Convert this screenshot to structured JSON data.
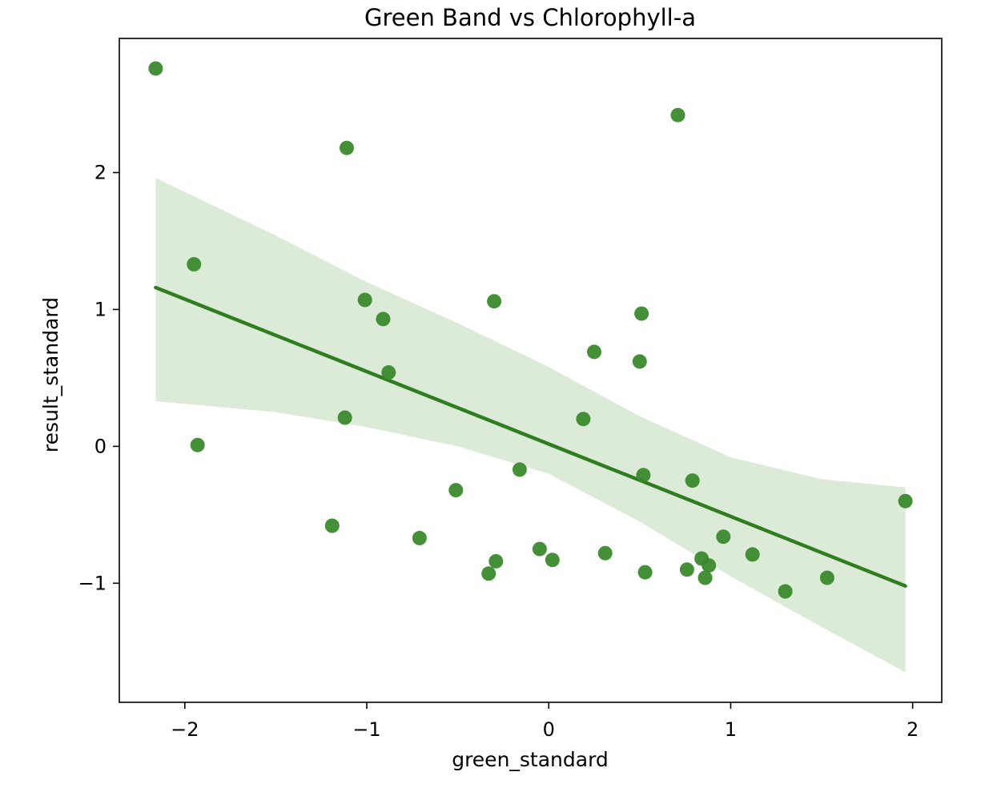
{
  "chart_data": {
    "type": "scatter",
    "title": "Green Band vs Chlorophyll-a",
    "xlabel": "green_standard",
    "ylabel": "result_standard",
    "xlim": [
      -2.36,
      2.16
    ],
    "ylim": [
      -1.87,
      2.98
    ],
    "x_ticks": [
      -2,
      -1,
      0,
      1,
      2
    ],
    "x_tick_labels": [
      "−2",
      "−1",
      "0",
      "1",
      "2"
    ],
    "y_ticks": [
      -1,
      0,
      1,
      2
    ],
    "y_tick_labels": [
      "−1",
      "0",
      "1",
      "2"
    ],
    "grid": false,
    "colors": {
      "points": "#3a8a2c",
      "line": "#2e7d1f",
      "ci_band": "#dcebd7"
    },
    "points": [
      {
        "x": -2.16,
        "y": 2.76
      },
      {
        "x": -1.11,
        "y": 2.18
      },
      {
        "x": 0.71,
        "y": 2.42
      },
      {
        "x": -1.95,
        "y": 1.33
      },
      {
        "x": -1.01,
        "y": 1.07
      },
      {
        "x": -0.91,
        "y": 0.93
      },
      {
        "x": -0.3,
        "y": 1.06
      },
      {
        "x": 0.51,
        "y": 0.97
      },
      {
        "x": 0.25,
        "y": 0.69
      },
      {
        "x": 0.5,
        "y": 0.62
      },
      {
        "x": -0.88,
        "y": 0.54
      },
      {
        "x": -1.12,
        "y": 0.21
      },
      {
        "x": 0.19,
        "y": 0.2
      },
      {
        "x": -1.93,
        "y": 0.01
      },
      {
        "x": -0.16,
        "y": -0.17
      },
      {
        "x": 0.52,
        "y": -0.21
      },
      {
        "x": 0.79,
        "y": -0.25
      },
      {
        "x": -0.51,
        "y": -0.32
      },
      {
        "x": 1.96,
        "y": -0.4
      },
      {
        "x": -1.19,
        "y": -0.58
      },
      {
        "x": -0.71,
        "y": -0.67
      },
      {
        "x": 0.96,
        "y": -0.66
      },
      {
        "x": -0.05,
        "y": -0.75
      },
      {
        "x": 0.31,
        "y": -0.78
      },
      {
        "x": 1.12,
        "y": -0.79
      },
      {
        "x": -0.29,
        "y": -0.84
      },
      {
        "x": 0.02,
        "y": -0.83
      },
      {
        "x": 0.84,
        "y": -0.82
      },
      {
        "x": 0.88,
        "y": -0.87
      },
      {
        "x": -0.33,
        "y": -0.93
      },
      {
        "x": 0.53,
        "y": -0.92
      },
      {
        "x": 0.76,
        "y": -0.9
      },
      {
        "x": 0.86,
        "y": -0.96
      },
      {
        "x": 1.53,
        "y": -0.96
      },
      {
        "x": 1.3,
        "y": -1.06
      }
    ],
    "regression": {
      "x": [
        -2.16,
        1.96
      ],
      "y": [
        1.16,
        -1.02
      ]
    },
    "ci_band": {
      "x": [
        -2.16,
        -1.5,
        -1.0,
        -0.5,
        0.0,
        0.5,
        1.0,
        1.5,
        1.96
      ],
      "upper": [
        1.96,
        1.54,
        1.2,
        0.9,
        0.58,
        0.22,
        -0.08,
        -0.24,
        -0.3
      ],
      "lower": [
        0.33,
        0.25,
        0.14,
        0.0,
        -0.2,
        -0.55,
        -0.95,
        -1.32,
        -1.65
      ]
    }
  }
}
